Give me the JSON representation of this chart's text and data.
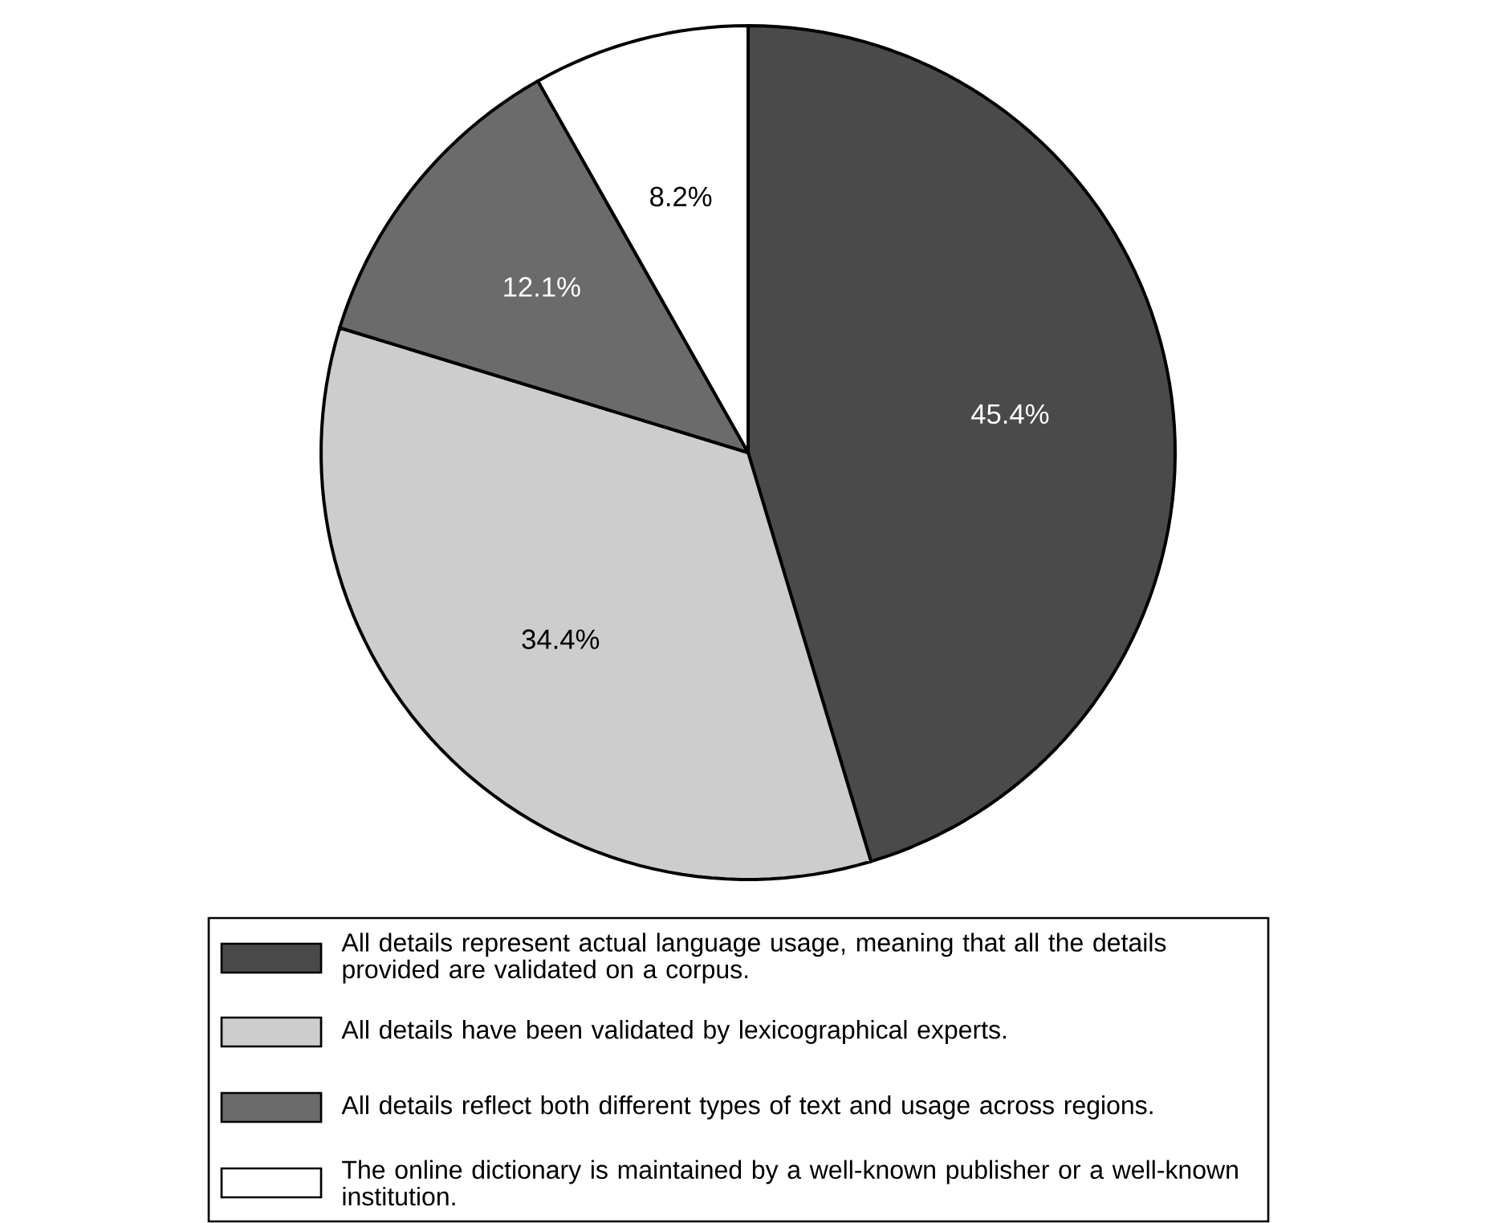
{
  "chart_data": {
    "type": "pie",
    "categories": [
      "All details represent actual language usage, meaning that all the details provided are validated on a corpus.",
      "All details have been validated by lexicographical experts.",
      "All details reflect both different types of text and usage across regions.",
      "The online dictionary is maintained by a well-known publisher or a well-known institution."
    ],
    "values": [
      45.4,
      34.4,
      12.1,
      8.2
    ],
    "value_labels": [
      "45.4%",
      "34.4%",
      "12.1%",
      "8.2%"
    ],
    "colors": [
      "#4a4a4a",
      "#cdcdcd",
      "#6b6b6b",
      "#ffffff"
    ],
    "legend": "bottom"
  }
}
